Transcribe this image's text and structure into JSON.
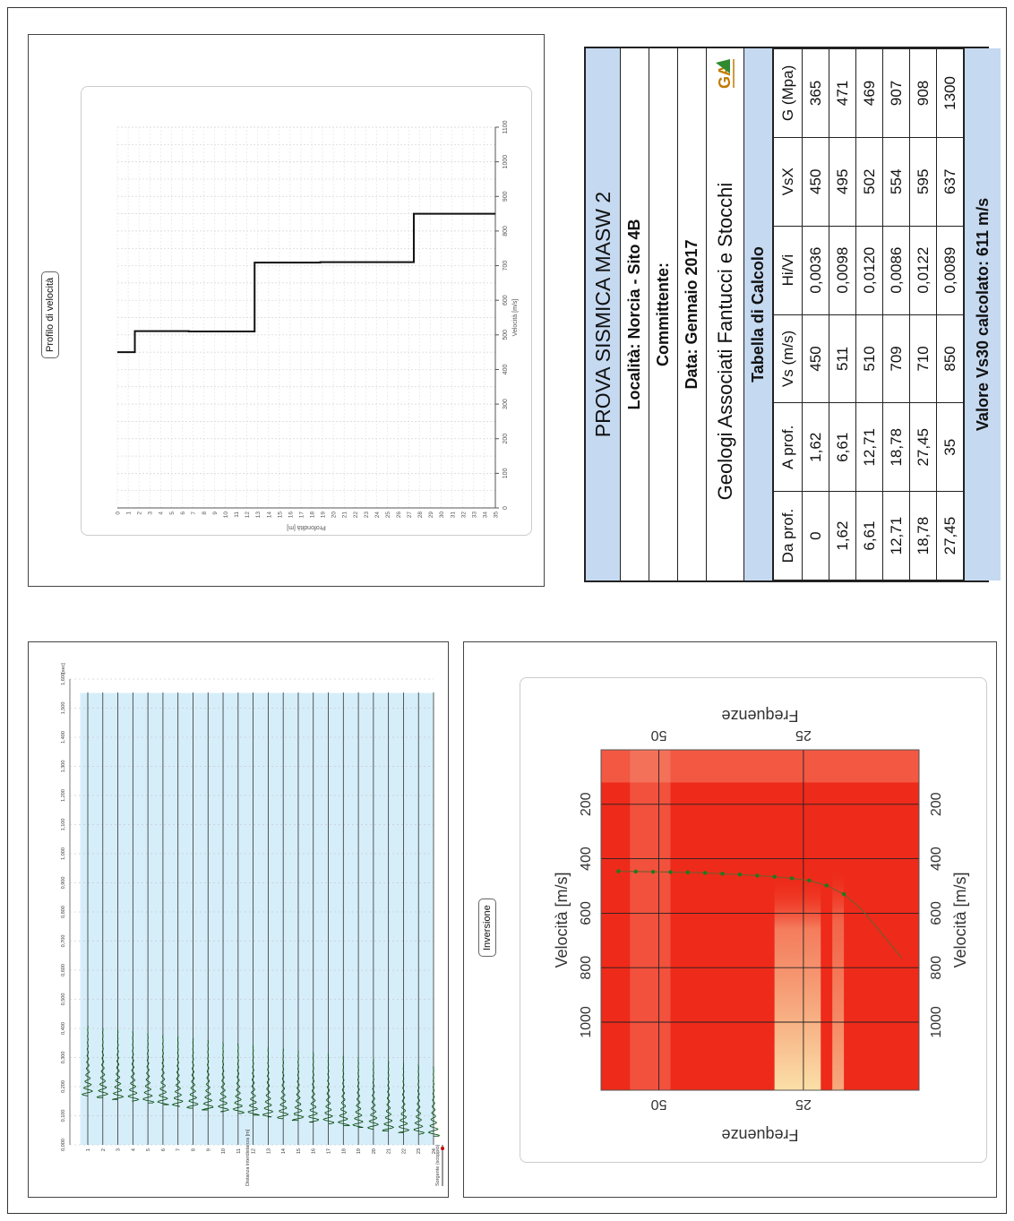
{
  "header": {
    "title": "PROVA SISMICA MASW 2",
    "location": "Località: Norcia - Sito 4B",
    "client": "Committente:",
    "date": "Data: Gennaio 2017",
    "company": "Geologi Associati Fantucci e Stocchi",
    "logo_text": "GA",
    "table_title": "Tabella di Calcolo"
  },
  "table": {
    "columns": [
      "Da prof.",
      "A prof.",
      "Vs (m/s)",
      "Hi/Vi",
      "VsX",
      "G (Mpa)"
    ],
    "rows": [
      [
        "0",
        "1,62",
        "450",
        "0,0036",
        "450",
        "365"
      ],
      [
        "1,62",
        "6,61",
        "511",
        "0,0098",
        "495",
        "471"
      ],
      [
        "6,61",
        "12,71",
        "510",
        "0,0120",
        "502",
        "469"
      ],
      [
        "12,71",
        "18,78",
        "709",
        "0,0086",
        "554",
        "907"
      ],
      [
        "18,78",
        "27,45",
        "710",
        "0,0122",
        "595",
        "908"
      ],
      [
        "27,45",
        "35",
        "850",
        "0,0089",
        "637",
        "1300"
      ]
    ],
    "footer": "Valore Vs30 calcolato: 611 m/s"
  },
  "velocity_profile": {
    "label": "Profilo di velocità",
    "xlabel": "Velocità [m/s]",
    "ylabel": "Profondità [m]",
    "x_ticks": [
      "0",
      "100",
      "200",
      "300",
      "400",
      "500",
      "600",
      "700",
      "800",
      "900",
      "1000",
      "1100"
    ],
    "depth_ticks": [
      "0",
      "1",
      "2",
      "3",
      "4",
      "5",
      "6",
      "7",
      "8",
      "9",
      "10",
      "11",
      "12",
      "13",
      "14",
      "15",
      "16",
      "17",
      "18",
      "19",
      "20",
      "21",
      "22",
      "23",
      "24",
      "25",
      "26",
      "27",
      "28",
      "29",
      "30",
      "31",
      "32",
      "33",
      "34",
      "35"
    ],
    "steps": [
      {
        "from": 0,
        "to": 1.62,
        "vs": 450
      },
      {
        "from": 1.62,
        "to": 6.61,
        "vs": 511
      },
      {
        "from": 6.61,
        "to": 12.71,
        "vs": 510
      },
      {
        "from": 12.71,
        "to": 18.78,
        "vs": 709
      },
      {
        "from": 18.78,
        "to": 27.45,
        "vs": 710
      },
      {
        "from": 27.45,
        "to": 35,
        "vs": 850
      }
    ],
    "line_color": "#111111"
  },
  "seismogram": {
    "trigger_label": "Sorgente (scoppio)",
    "axis_label": "Distanza interdistanza [m]",
    "time_unit": "[sec]",
    "time_ticks": [
      "0,000",
      "0,100",
      "0,200",
      "0,300",
      "0,400",
      "0,500",
      "0,600",
      "0,700",
      "0,800",
      "0,900",
      "1,000",
      "1,100",
      "1,200",
      "1,300",
      "1,400",
      "1,500",
      "1,600"
    ],
    "traces": [
      "1",
      "2",
      "3",
      "4",
      "5",
      "6",
      "7",
      "8",
      "9",
      "10",
      "11",
      "12",
      "13",
      "14",
      "15",
      "16",
      "17",
      "18",
      "19",
      "20",
      "21",
      "22",
      "23",
      "24"
    ],
    "bg_color": "#d6eefa",
    "wave_color": "#1d8a2a"
  },
  "dispersion": {
    "label": "Inversione",
    "xlabel_top": "Velocità [m/s]",
    "xlabel_bottom": "Velocità [m/s]",
    "ylabel_left": "Frequenze",
    "ylabel_right": "Frequenze",
    "vel_ticks": [
      "1000",
      "800",
      "600",
      "400",
      "200"
    ],
    "freq_ticks": [
      "25",
      "50"
    ],
    "curve_color": "#1e7a1e",
    "map_color": "#ee2a1a",
    "highlight_color": "#fbe0a8"
  }
}
